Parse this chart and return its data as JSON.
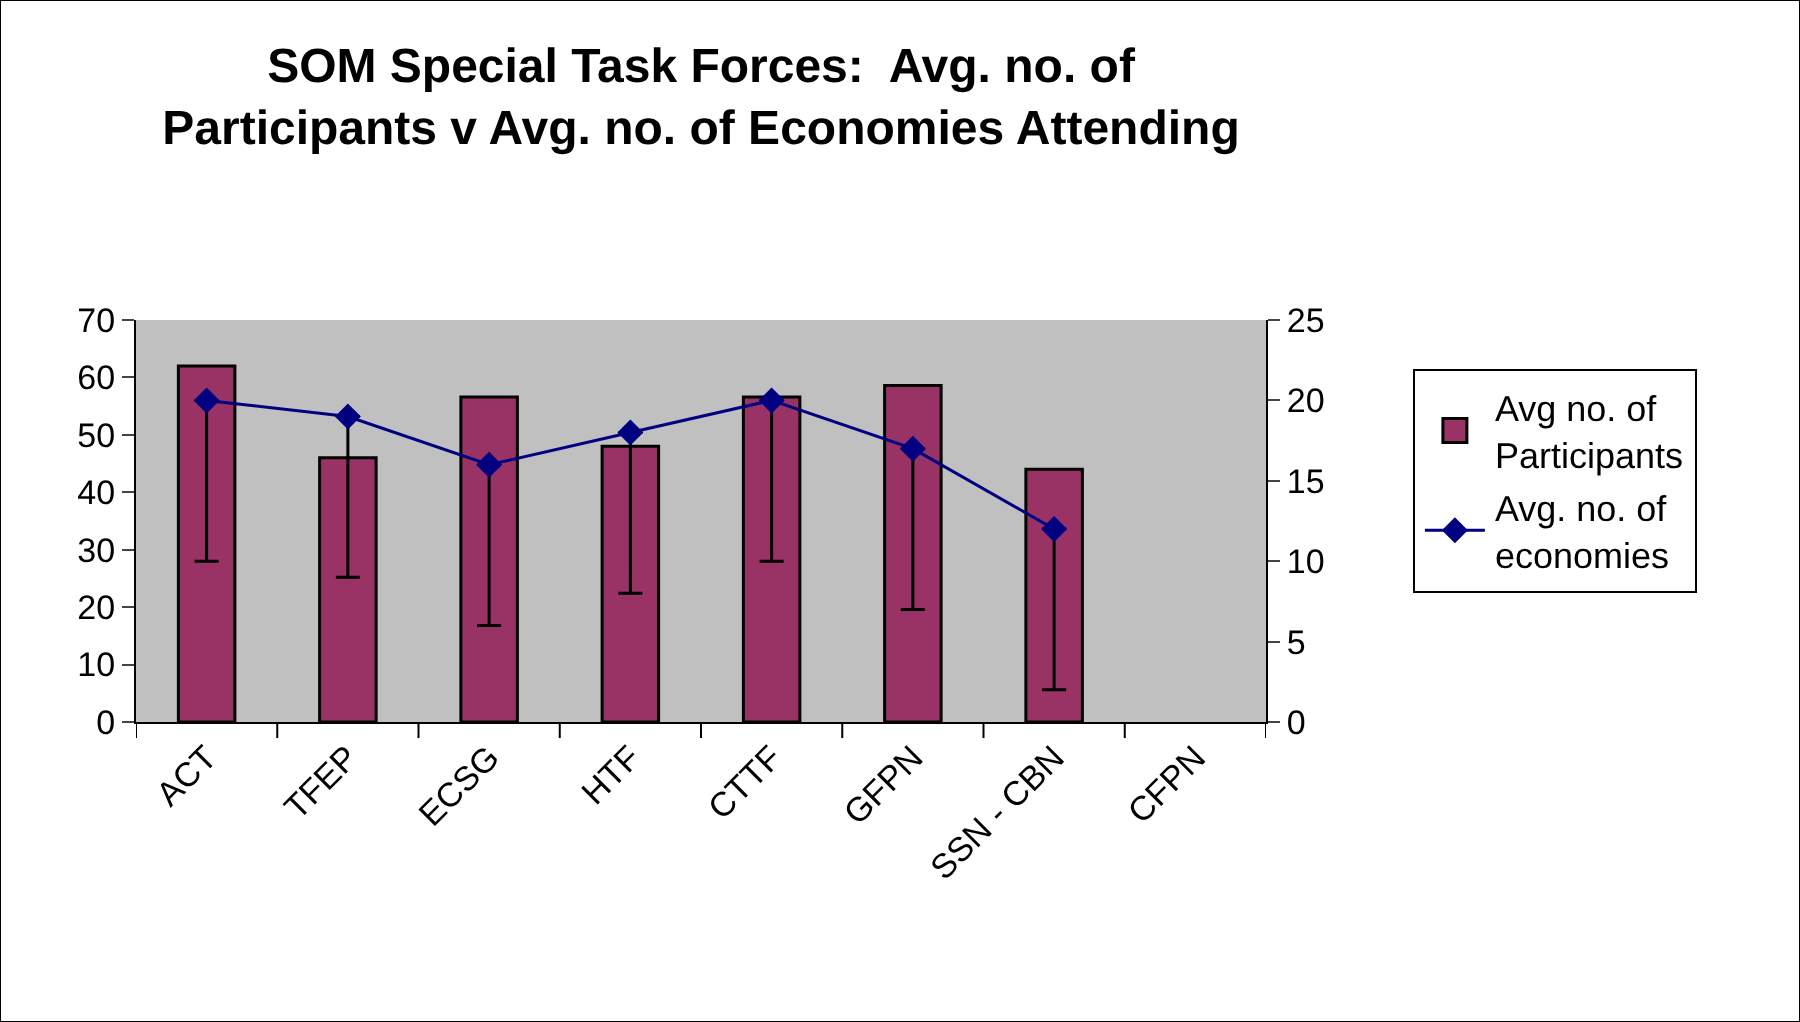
{
  "chart_data": {
    "type": "bar",
    "title": "SOM Special Task Forces:  Avg. no. of\nParticipants v Avg. no. of Economies Attending",
    "categories": [
      "ACT",
      "TFEP",
      "ECSG",
      "HTF",
      "CTTF",
      "GFPN",
      "SSN - CBN",
      "CFPN"
    ],
    "series": [
      {
        "name": "Avg no. of Participants",
        "color": "#993366",
        "values": [
          62,
          46,
          56.6,
          48,
          56.6,
          58.6,
          44,
          null
        ]
      },
      {
        "name": "Avg. no. of economies",
        "type": "line",
        "axis": "y2",
        "color": "#000080",
        "marker": "diamond",
        "values": [
          20,
          19,
          16,
          18,
          20,
          17,
          12,
          null
        ],
        "errors": [
          [
            10,
            20
          ],
          [
            9,
            19
          ],
          [
            6,
            16
          ],
          [
            8,
            18
          ],
          [
            10,
            20
          ],
          [
            7,
            17
          ],
          [
            2,
            12
          ],
          null
        ]
      }
    ],
    "ylim": [
      0,
      70
    ],
    "yticks": [
      0,
      10,
      20,
      30,
      40,
      50,
      60,
      70
    ],
    "y2lim": [
      0,
      25
    ],
    "y2ticks": [
      0,
      5,
      10,
      15,
      20,
      25
    ],
    "grid": false,
    "legend": "right"
  }
}
